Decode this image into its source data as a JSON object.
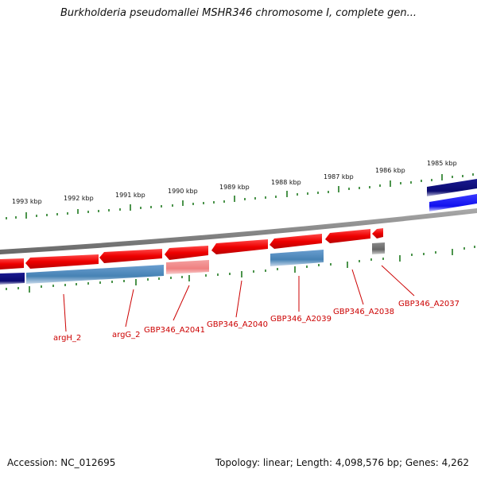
{
  "title": "Burkholderia pseudomallei MSHR346 chromosome I, complete gen...",
  "footer": {
    "accession": "Accession: NC_012695",
    "topology": "Topology: linear; Length: 4,098,576 bp; Genes: 4,262"
  },
  "scale": {
    "labels": [
      "1993 kbp",
      "1992 kbp",
      "1991 kbp",
      "1990 kbp",
      "1989 kbp",
      "1988 kbp",
      "1987 kbp",
      "1986 kbp",
      "1985 kbp"
    ]
  },
  "genes": [
    {
      "label": "argH_2",
      "color": "#cc0000"
    },
    {
      "label": "argG_2",
      "color": "#cc0000"
    },
    {
      "label": "GBP346_A2041",
      "color": "#cc0000"
    },
    {
      "label": "GBP346_A2040",
      "color": "#cc0000"
    },
    {
      "label": "GBP346_A2039",
      "color": "#cc0000"
    },
    {
      "label": "GBP346_A2038",
      "color": "#cc0000"
    },
    {
      "label": "GBP346_A2037",
      "color": "#cc0000"
    }
  ],
  "colors": {
    "cds_forward": "#ee0000",
    "cds_reverse_light": "#4682b4",
    "navy_track": "#0a0a78",
    "blue_track": "#1a1aff",
    "pink_feature": "#f08080",
    "gray_feature": "#666666",
    "backbone": "#888888",
    "tick": "#1f7a1f"
  }
}
